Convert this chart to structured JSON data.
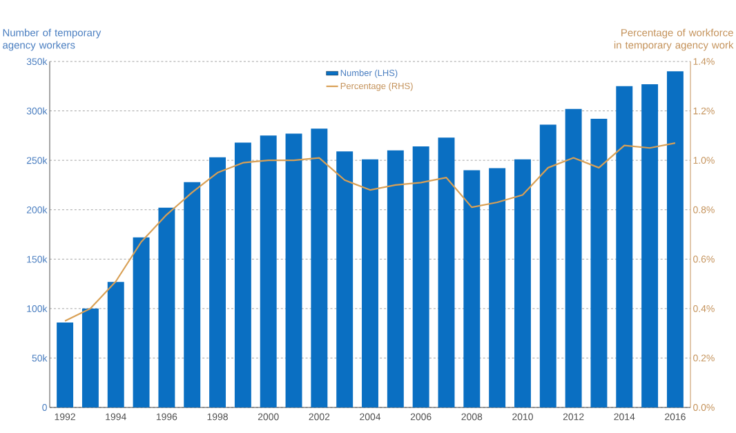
{
  "chart_data": {
    "type": "bar",
    "ylabel": "Number of temporary agency workers",
    "y2label": "Percentage of workforce in temporary agency work",
    "x": [
      1992,
      1993,
      1994,
      1995,
      1996,
      1997,
      1998,
      1999,
      2000,
      2001,
      2002,
      2003,
      2004,
      2005,
      2006,
      2007,
      2008,
      2009,
      2010,
      2011,
      2012,
      2013,
      2014,
      2015,
      2016
    ],
    "series": [
      {
        "name": "Number (LHS)",
        "color": "#0a6fc2",
        "values": [
          86000,
          100000,
          127000,
          172000,
          202000,
          228000,
          253000,
          268000,
          275000,
          277000,
          282000,
          259000,
          251000,
          260000,
          264000,
          273000,
          240000,
          242000,
          251000,
          286000,
          302000,
          292000,
          325000,
          327000,
          340000
        ]
      },
      {
        "name": "Percentage (RHS)",
        "type": "line",
        "axis": "y2",
        "color": "#d9a055",
        "values": [
          0.35,
          0.4,
          0.51,
          0.67,
          0.78,
          0.87,
          0.95,
          0.99,
          1.0,
          1.0,
          1.01,
          0.92,
          0.88,
          0.9,
          0.91,
          0.93,
          0.81,
          0.83,
          0.86,
          0.97,
          1.01,
          0.97,
          1.06,
          1.05,
          1.07
        ]
      }
    ],
    "xlim": [
      1991.4,
      2016.6
    ],
    "xticks": [
      1992,
      1994,
      1996,
      1998,
      2000,
      2002,
      2004,
      2006,
      2008,
      2010,
      2012,
      2014,
      2016
    ],
    "ylim": [
      0,
      350000
    ],
    "yticks": [
      {
        "value": 0,
        "label": "0"
      },
      {
        "value": 50000,
        "label": "50k"
      },
      {
        "value": 100000,
        "label": "100k"
      },
      {
        "value": 150000,
        "label": "150k"
      },
      {
        "value": 200000,
        "label": "200k"
      },
      {
        "value": 250000,
        "label": "250k"
      },
      {
        "value": 300000,
        "label": "300k"
      },
      {
        "value": 350000,
        "label": "350k"
      }
    ],
    "y2lim": [
      0,
      1.4
    ],
    "y2ticks": [
      {
        "value": 0,
        "label": "0.0%"
      },
      {
        "value": 0.2,
        "label": "0.2%"
      },
      {
        "value": 0.4,
        "label": "0.4%"
      },
      {
        "value": 0.6,
        "label": "0.6%"
      },
      {
        "value": 0.8,
        "label": "0.8%"
      },
      {
        "value": 1.0,
        "label": "1.0%"
      },
      {
        "value": 1.2,
        "label": "1.2%"
      },
      {
        "value": 1.4,
        "label": "1.4%"
      }
    ],
    "grid": "y",
    "legend": "top"
  }
}
